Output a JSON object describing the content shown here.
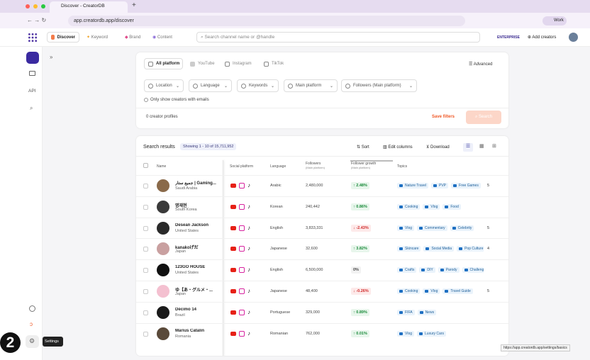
{
  "browser": {
    "tab_title": "Discover - CreatorDB",
    "url": "app.creatordb.app/discover",
    "profile": "Work",
    "status_url": "https://app.creatordb.app/settings/basics"
  },
  "header": {
    "nav": [
      "Discover",
      "Keyword",
      "Brand",
      "Content"
    ],
    "search_placeholder": "Search channel name or @handle",
    "plan": "ENTERPRISE",
    "add_creators": "Add creators"
  },
  "sidebar": {
    "api": "API",
    "tooltip": "Settings",
    "badge": "2"
  },
  "filters": {
    "platforms": [
      "All platform",
      "YouTube",
      "Instagram",
      "TikTok"
    ],
    "advanced": "Advanced",
    "dropdowns": [
      "Location",
      "Language",
      "Keywords",
      "Main platform",
      "Followers (Main platform)"
    ],
    "email_checkbox": "Only show creators with emails",
    "profiles_count": "0 creator profiles",
    "save": "Save filters",
    "search": "Search"
  },
  "results": {
    "title": "Search results",
    "showing": "Showing 1 - 10 of 15,711,952",
    "sort": "Sort",
    "edit_columns": "Edit columns",
    "download": "Download",
    "columns": {
      "name": "Name",
      "social": "Social platform",
      "language": "Language",
      "followers": "Followers",
      "followers_sub": "(Main platform)",
      "growth": "Follower growth",
      "growth_sub": "(Main platform)",
      "topics": "Topics"
    },
    "rows": [
      {
        "name": "جميع ستار | Gaming...",
        "country": "Saudi Arabia",
        "language": "Arabic",
        "followers": "2,480,000",
        "growth": "2.48%",
        "trend": "up",
        "topics": [
          "Nature Travel",
          "PVP",
          "Free Games"
        ],
        "more": "5"
      },
      {
        "name": "명재현",
        "country": "South Korea",
        "language": "Korean",
        "followers": "240,442",
        "growth": "0.86%",
        "trend": "up",
        "topics": [
          "Cooking",
          "Vlog",
          "Food"
        ]
      },
      {
        "name": "Desean Jackson",
        "country": "United States",
        "language": "English",
        "followers": "3,833,331",
        "growth": "-2.43%",
        "trend": "down",
        "topics": [
          "Vlog",
          "Commentary",
          "Celebrity"
        ],
        "more": "5"
      },
      {
        "name": "kanakoげだ",
        "country": "Japan",
        "language": "Japanese",
        "followers": "32,600",
        "growth": "3.82%",
        "trend": "up",
        "topics": [
          "Skincare",
          "Social Media",
          "Pop Culture"
        ],
        "more": "4"
      },
      {
        "name": "123GO HOUSE",
        "country": "United States",
        "language": "English",
        "followers": "6,500,000",
        "growth": "0%",
        "trend": "flat",
        "topics": [
          "Crafts",
          "DIY",
          "Parody",
          "Challenges"
        ]
      },
      {
        "name": "ゆ【あ・グルメ・...",
        "country": "Japan",
        "language": "Japanese",
        "followers": "48,400",
        "growth": "-0.26%",
        "trend": "down",
        "topics": [
          "Cooking",
          "Vlog",
          "Travel Guide"
        ],
        "more": "5"
      },
      {
        "name": "Décimo 14",
        "country": "Brazil",
        "language": "Portuguese",
        "followers": "329,000",
        "growth": "0.89%",
        "trend": "up",
        "topics": [
          "FIFA",
          "News"
        ]
      },
      {
        "name": "Marius Catalin",
        "country": "Romania",
        "language": "Romanian",
        "followers": "762,000",
        "growth": "0.01%",
        "trend": "up",
        "topics": [
          "Vlog",
          "Luxury Cars"
        ]
      }
    ]
  }
}
